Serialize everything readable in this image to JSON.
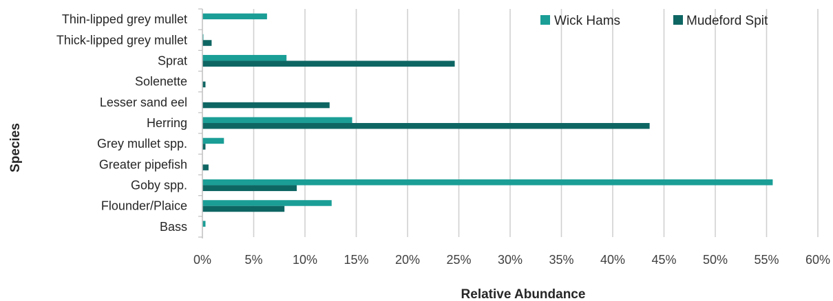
{
  "chart_data": {
    "type": "bar",
    "orientation": "horizontal",
    "xlabel": "Relative Abundance",
    "ylabel": "Species",
    "xlim": [
      0,
      60
    ],
    "x_ticks": [
      "0%",
      "5%",
      "10%",
      "15%",
      "20%",
      "25%",
      "30%",
      "35%",
      "40%",
      "45%",
      "50%",
      "55%",
      "60%"
    ],
    "grid": "vertical",
    "legend_position": "top-right",
    "categories": [
      "Thin-lipped grey mullet",
      "Thick-lipped grey mullet",
      "Sprat",
      "Solenette",
      "Lesser sand eel",
      "Herring",
      "Grey mullet spp.",
      "Greater pipefish",
      "Goby spp.",
      "Flounder/Plaice",
      "Bass"
    ],
    "series": [
      {
        "name": "Wick Hams",
        "color": "#1a9e96",
        "values": [
          6.3,
          0.1,
          8.2,
          0,
          0,
          14.6,
          2.1,
          0,
          55.6,
          12.6,
          0.3
        ]
      },
      {
        "name": "Mudeford Spit",
        "color": "#0e6663",
        "values": [
          0,
          0.9,
          24.6,
          0.3,
          12.4,
          43.6,
          0.3,
          0.6,
          9.2,
          8.0,
          0
        ]
      }
    ]
  }
}
